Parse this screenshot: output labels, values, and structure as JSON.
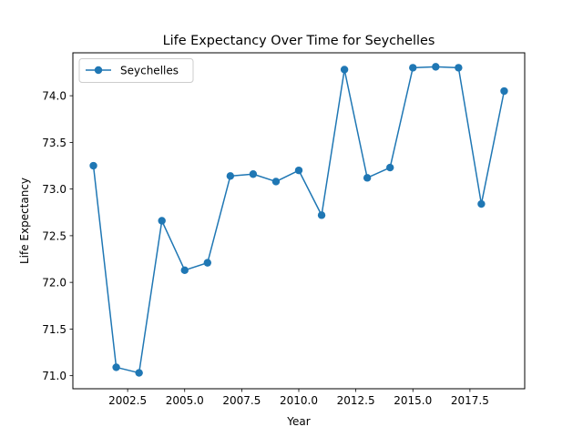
{
  "chart_data": {
    "type": "line",
    "title": "Life Expectancy Over Time for Seychelles",
    "xlabel": "Year",
    "ylabel": "Life Expectancy",
    "xlim": [
      2000.1,
      2019.9
    ],
    "ylim": [
      70.86,
      74.46
    ],
    "xticks": [
      2002.5,
      2005.0,
      2007.5,
      2010.0,
      2012.5,
      2015.0,
      2017.5
    ],
    "xtick_labels": [
      "2002.5",
      "2005.0",
      "2007.5",
      "2010.0",
      "2012.5",
      "2015.0",
      "2017.5"
    ],
    "yticks": [
      71.0,
      71.5,
      72.0,
      72.5,
      73.0,
      73.5,
      74.0
    ],
    "ytick_labels": [
      "71.0",
      "71.5",
      "72.0",
      "72.5",
      "73.0",
      "73.5",
      "74.0"
    ],
    "grid": false,
    "legend_position": "upper-left",
    "series": [
      {
        "name": "Seychelles",
        "color": "#1f77b4",
        "marker": "circle",
        "x": [
          2001,
          2002,
          2003,
          2004,
          2005,
          2006,
          2007,
          2008,
          2009,
          2010,
          2011,
          2012,
          2013,
          2014,
          2015,
          2016,
          2017,
          2018,
          2019
        ],
        "y": [
          73.25,
          71.09,
          71.03,
          72.66,
          72.13,
          72.21,
          73.14,
          73.16,
          73.08,
          73.2,
          72.72,
          74.28,
          73.12,
          73.23,
          74.3,
          74.31,
          74.3,
          72.84,
          74.05
        ]
      }
    ]
  }
}
